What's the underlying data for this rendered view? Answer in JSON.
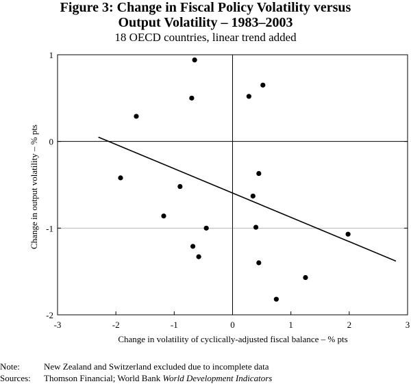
{
  "title_line1": "Figure 3: Change in Fiscal Policy Volatility versus",
  "title_line2": "Output Volatility – 1983–2003",
  "subtitle": "18 OECD countries, linear trend added",
  "notes": {
    "note_label": "Note:",
    "note_text": "New Zealand and Switzerland excluded due to incomplete data",
    "sources_label": "Sources:",
    "sources_text": "Thomson Financial; World Bank ",
    "sources_italic": "World Development Indicators"
  },
  "chart_data": {
    "type": "scatter",
    "title": "Figure 3: Change in Fiscal Policy Volatility versus Output Volatility – 1983–2003",
    "subtitle": "18 OECD countries, linear trend added",
    "xlabel": "Change in volatility of cyclically-adjusted fiscal balance – % pts",
    "ylabel": "Change in output volatility – % pts",
    "xlim": [
      -3,
      3
    ],
    "ylim": [
      -2,
      1
    ],
    "xticks": [
      -3,
      -2,
      -1,
      0,
      1,
      2,
      3
    ],
    "yticks": [
      -2,
      -1,
      0,
      1
    ],
    "xtick_labels": [
      "-3",
      "-2",
      "-1",
      "0",
      "1",
      "2",
      "3"
    ],
    "ytick_labels": [
      "-2",
      "-1",
      "0",
      "1"
    ],
    "points": [
      {
        "x": -0.65,
        "y": 0.94
      },
      {
        "x": 0.52,
        "y": 0.65
      },
      {
        "x": -0.7,
        "y": 0.5
      },
      {
        "x": 0.28,
        "y": 0.52
      },
      {
        "x": -1.65,
        "y": 0.29
      },
      {
        "x": -1.92,
        "y": -0.42
      },
      {
        "x": -0.9,
        "y": -0.52
      },
      {
        "x": 0.45,
        "y": -0.37
      },
      {
        "x": 0.35,
        "y": -0.63
      },
      {
        "x": -1.18,
        "y": -0.86
      },
      {
        "x": -0.45,
        "y": -1.0
      },
      {
        "x": 0.4,
        "y": -0.99
      },
      {
        "x": 1.98,
        "y": -1.07
      },
      {
        "x": -0.68,
        "y": -1.21
      },
      {
        "x": -0.58,
        "y": -1.33
      },
      {
        "x": 0.45,
        "y": -1.4
      },
      {
        "x": 1.25,
        "y": -1.57
      },
      {
        "x": 0.75,
        "y": -1.82
      }
    ],
    "trend_line": {
      "x": [
        -2.3,
        2.8
      ],
      "y": [
        0.05,
        -1.38
      ]
    }
  }
}
